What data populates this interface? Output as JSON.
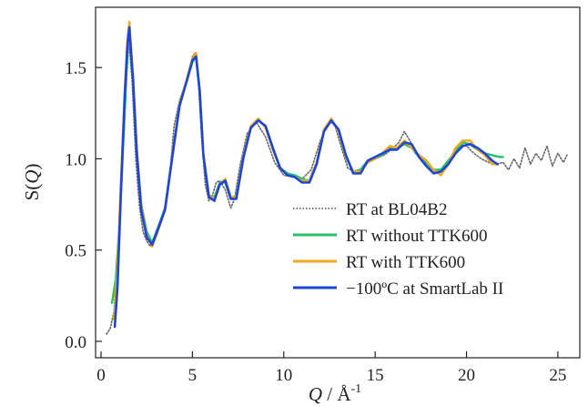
{
  "chart_data": {
    "type": "line",
    "title": "",
    "xlabel_parts": {
      "var": "Q",
      "unit": " / Å",
      "exp": "-1"
    },
    "ylabel_parts": {
      "pre": "S(",
      "var": "Q",
      "post": ")"
    },
    "xlim": [
      -0.3,
      26.2
    ],
    "ylim": [
      -0.09,
      1.83
    ],
    "xticks": [
      0,
      5,
      10,
      15,
      20,
      25
    ],
    "yticks": [
      0.0,
      0.5,
      1.0,
      1.5
    ],
    "xtick_labels": [
      "0",
      "5",
      "10",
      "15",
      "20",
      "25"
    ],
    "ytick_labels": [
      "0.0",
      "0.5",
      "1.0",
      "1.5"
    ],
    "grid": false,
    "legend_position": "lower-right",
    "series": [
      {
        "name": "RT at BL04B2",
        "color": "#666666",
        "style": "dotted",
        "x": [
          0.3,
          0.5,
          0.7,
          0.9,
          1.1,
          1.3,
          1.5,
          1.7,
          1.9,
          2.1,
          2.3,
          2.5,
          2.7,
          2.85,
          3.0,
          3.2,
          3.5,
          3.8,
          4.0,
          4.3,
          4.6,
          4.8,
          5.0,
          5.15,
          5.3,
          5.5,
          5.7,
          5.9,
          6.1,
          6.3,
          6.5,
          6.8,
          7.1,
          7.3,
          7.6,
          8.0,
          8.5,
          9.0,
          9.5,
          10.0,
          10.5,
          11.0,
          11.5,
          12.0,
          12.5,
          12.8,
          13.1,
          13.5,
          14.0,
          14.5,
          15.0,
          15.5,
          16.0,
          16.3,
          16.6,
          16.9,
          17.2,
          17.6,
          18.0,
          18.4,
          18.8,
          19.2,
          19.6,
          20.0,
          20.4,
          20.8,
          21.2,
          21.6,
          22.0,
          22.3,
          22.6,
          22.9,
          23.2,
          23.5,
          23.8,
          24.1,
          24.4,
          24.7,
          25.0,
          25.3,
          25.5
        ],
        "y": [
          0.04,
          0.07,
          0.16,
          0.45,
          0.95,
          1.4,
          1.68,
          1.42,
          1.0,
          0.74,
          0.6,
          0.55,
          0.52,
          0.54,
          0.6,
          0.65,
          0.74,
          0.96,
          1.18,
          1.32,
          1.41,
          1.48,
          1.56,
          1.58,
          1.47,
          1.12,
          0.86,
          0.77,
          0.8,
          0.87,
          0.88,
          0.83,
          0.73,
          0.78,
          0.96,
          1.14,
          1.2,
          1.12,
          0.98,
          0.91,
          0.9,
          0.89,
          0.94,
          1.1,
          1.21,
          1.18,
          1.08,
          0.95,
          0.92,
          0.98,
          1.01,
          1.02,
          1.06,
          1.09,
          1.15,
          1.1,
          1.03,
          1.0,
          0.95,
          0.92,
          0.95,
          1.02,
          1.08,
          1.07,
          1.03,
          1.0,
          0.98,
          0.97,
          0.98,
          0.94,
          1.0,
          0.95,
          1.06,
          0.97,
          1.03,
          0.99,
          1.07,
          0.96,
          1.03,
          0.98,
          1.02
        ]
      },
      {
        "name": "RT without TTK600",
        "color": "#27c26a",
        "style": "solid",
        "x": [
          0.6,
          0.8,
          1.0,
          1.2,
          1.4,
          1.55,
          1.75,
          1.95,
          2.2,
          2.5,
          2.8,
          3.1,
          3.5,
          3.9,
          4.3,
          4.7,
          5.0,
          5.2,
          5.4,
          5.6,
          5.9,
          6.2,
          6.5,
          6.8,
          7.1,
          7.4,
          7.8,
          8.2,
          8.6,
          9.0,
          9.4,
          9.8,
          10.2,
          10.6,
          11.0,
          11.4,
          11.8,
          12.2,
          12.6,
          13.0,
          13.4,
          13.8,
          14.2,
          14.6,
          15.0,
          15.4,
          15.8,
          16.2,
          16.6,
          17.0,
          17.4,
          17.8,
          18.2,
          18.6,
          19.0,
          19.4,
          19.8,
          20.2,
          20.6,
          21.0,
          21.4,
          21.8,
          22.0
        ],
        "y": [
          0.21,
          0.34,
          0.62,
          1.05,
          1.48,
          1.71,
          1.42,
          1.05,
          0.75,
          0.6,
          0.54,
          0.62,
          0.73,
          1.02,
          1.3,
          1.43,
          1.53,
          1.56,
          1.36,
          1.02,
          0.8,
          0.79,
          0.87,
          0.87,
          0.78,
          0.8,
          1.02,
          1.17,
          1.21,
          1.18,
          1.06,
          0.95,
          0.92,
          0.91,
          0.89,
          0.88,
          0.98,
          1.15,
          1.21,
          1.16,
          1.01,
          0.93,
          0.94,
          0.99,
          1.0,
          1.02,
          1.06,
          1.06,
          1.08,
          1.06,
          1.01,
          0.97,
          0.94,
          0.94,
          0.99,
          1.04,
          1.09,
          1.08,
          1.05,
          1.03,
          1.02,
          1.01,
          1.01
        ]
      },
      {
        "name": "RT with TTK600",
        "color": "#f0a91f",
        "style": "solid",
        "x": [
          0.7,
          0.9,
          1.1,
          1.3,
          1.45,
          1.55,
          1.75,
          1.95,
          2.2,
          2.5,
          2.8,
          3.1,
          3.5,
          3.9,
          4.3,
          4.7,
          5.0,
          5.2,
          5.4,
          5.6,
          5.9,
          6.2,
          6.5,
          6.8,
          7.1,
          7.4,
          7.8,
          8.2,
          8.6,
          9.0,
          9.4,
          9.8,
          10.2,
          10.6,
          11.0,
          11.4,
          11.8,
          12.2,
          12.6,
          13.0,
          13.4,
          13.8,
          14.2,
          14.6,
          15.0,
          15.4,
          15.8,
          16.2,
          16.6,
          17.0,
          17.4,
          17.8,
          18.2,
          18.6,
          19.0,
          19.4,
          19.8,
          20.2,
          20.6,
          21.0,
          21.4,
          21.7
        ],
        "y": [
          0.12,
          0.4,
          0.9,
          1.38,
          1.66,
          1.75,
          1.45,
          1.06,
          0.74,
          0.58,
          0.52,
          0.6,
          0.72,
          1.02,
          1.3,
          1.44,
          1.55,
          1.58,
          1.38,
          1.03,
          0.8,
          0.78,
          0.86,
          0.89,
          0.79,
          0.79,
          1.02,
          1.18,
          1.22,
          1.17,
          1.05,
          0.95,
          0.91,
          0.9,
          0.88,
          0.88,
          0.98,
          1.16,
          1.22,
          1.15,
          1.01,
          0.93,
          0.93,
          0.98,
          1.0,
          1.03,
          1.07,
          1.06,
          1.1,
          1.06,
          1.02,
          0.99,
          0.94,
          0.91,
          0.97,
          1.06,
          1.1,
          1.1,
          1.05,
          1.02,
          0.97,
          0.97
        ]
      },
      {
        "name": "−100ºC at SmartLab II",
        "color": "#1f44d8",
        "style": "solid",
        "x": [
          0.75,
          0.9,
          1.1,
          1.3,
          1.45,
          1.55,
          1.75,
          1.95,
          2.2,
          2.5,
          2.8,
          3.1,
          3.5,
          3.9,
          4.3,
          4.7,
          5.0,
          5.2,
          5.4,
          5.6,
          5.9,
          6.2,
          6.5,
          6.8,
          7.1,
          7.4,
          7.8,
          8.2,
          8.6,
          9.0,
          9.4,
          9.8,
          10.2,
          10.6,
          11.0,
          11.4,
          11.8,
          12.2,
          12.6,
          13.0,
          13.4,
          13.8,
          14.2,
          14.6,
          15.0,
          15.4,
          15.8,
          16.2,
          16.6,
          17.0,
          17.4,
          17.8,
          18.2,
          18.6,
          19.0,
          19.4,
          19.8,
          20.2,
          20.6,
          21.0,
          21.4,
          21.7
        ],
        "y": [
          0.08,
          0.3,
          0.85,
          1.35,
          1.63,
          1.72,
          1.43,
          1.04,
          0.72,
          0.57,
          0.53,
          0.61,
          0.72,
          1.01,
          1.29,
          1.43,
          1.54,
          1.56,
          1.37,
          1.02,
          0.79,
          0.77,
          0.86,
          0.88,
          0.78,
          0.78,
          1.01,
          1.17,
          1.21,
          1.18,
          1.06,
          0.95,
          0.91,
          0.9,
          0.87,
          0.87,
          0.97,
          1.15,
          1.21,
          1.16,
          1.02,
          0.92,
          0.92,
          0.99,
          1.01,
          1.03,
          1.05,
          1.05,
          1.09,
          1.08,
          1.01,
          0.96,
          0.92,
          0.93,
          0.97,
          1.03,
          1.07,
          1.08,
          1.06,
          1.03,
          0.99,
          0.97
        ]
      }
    ]
  }
}
